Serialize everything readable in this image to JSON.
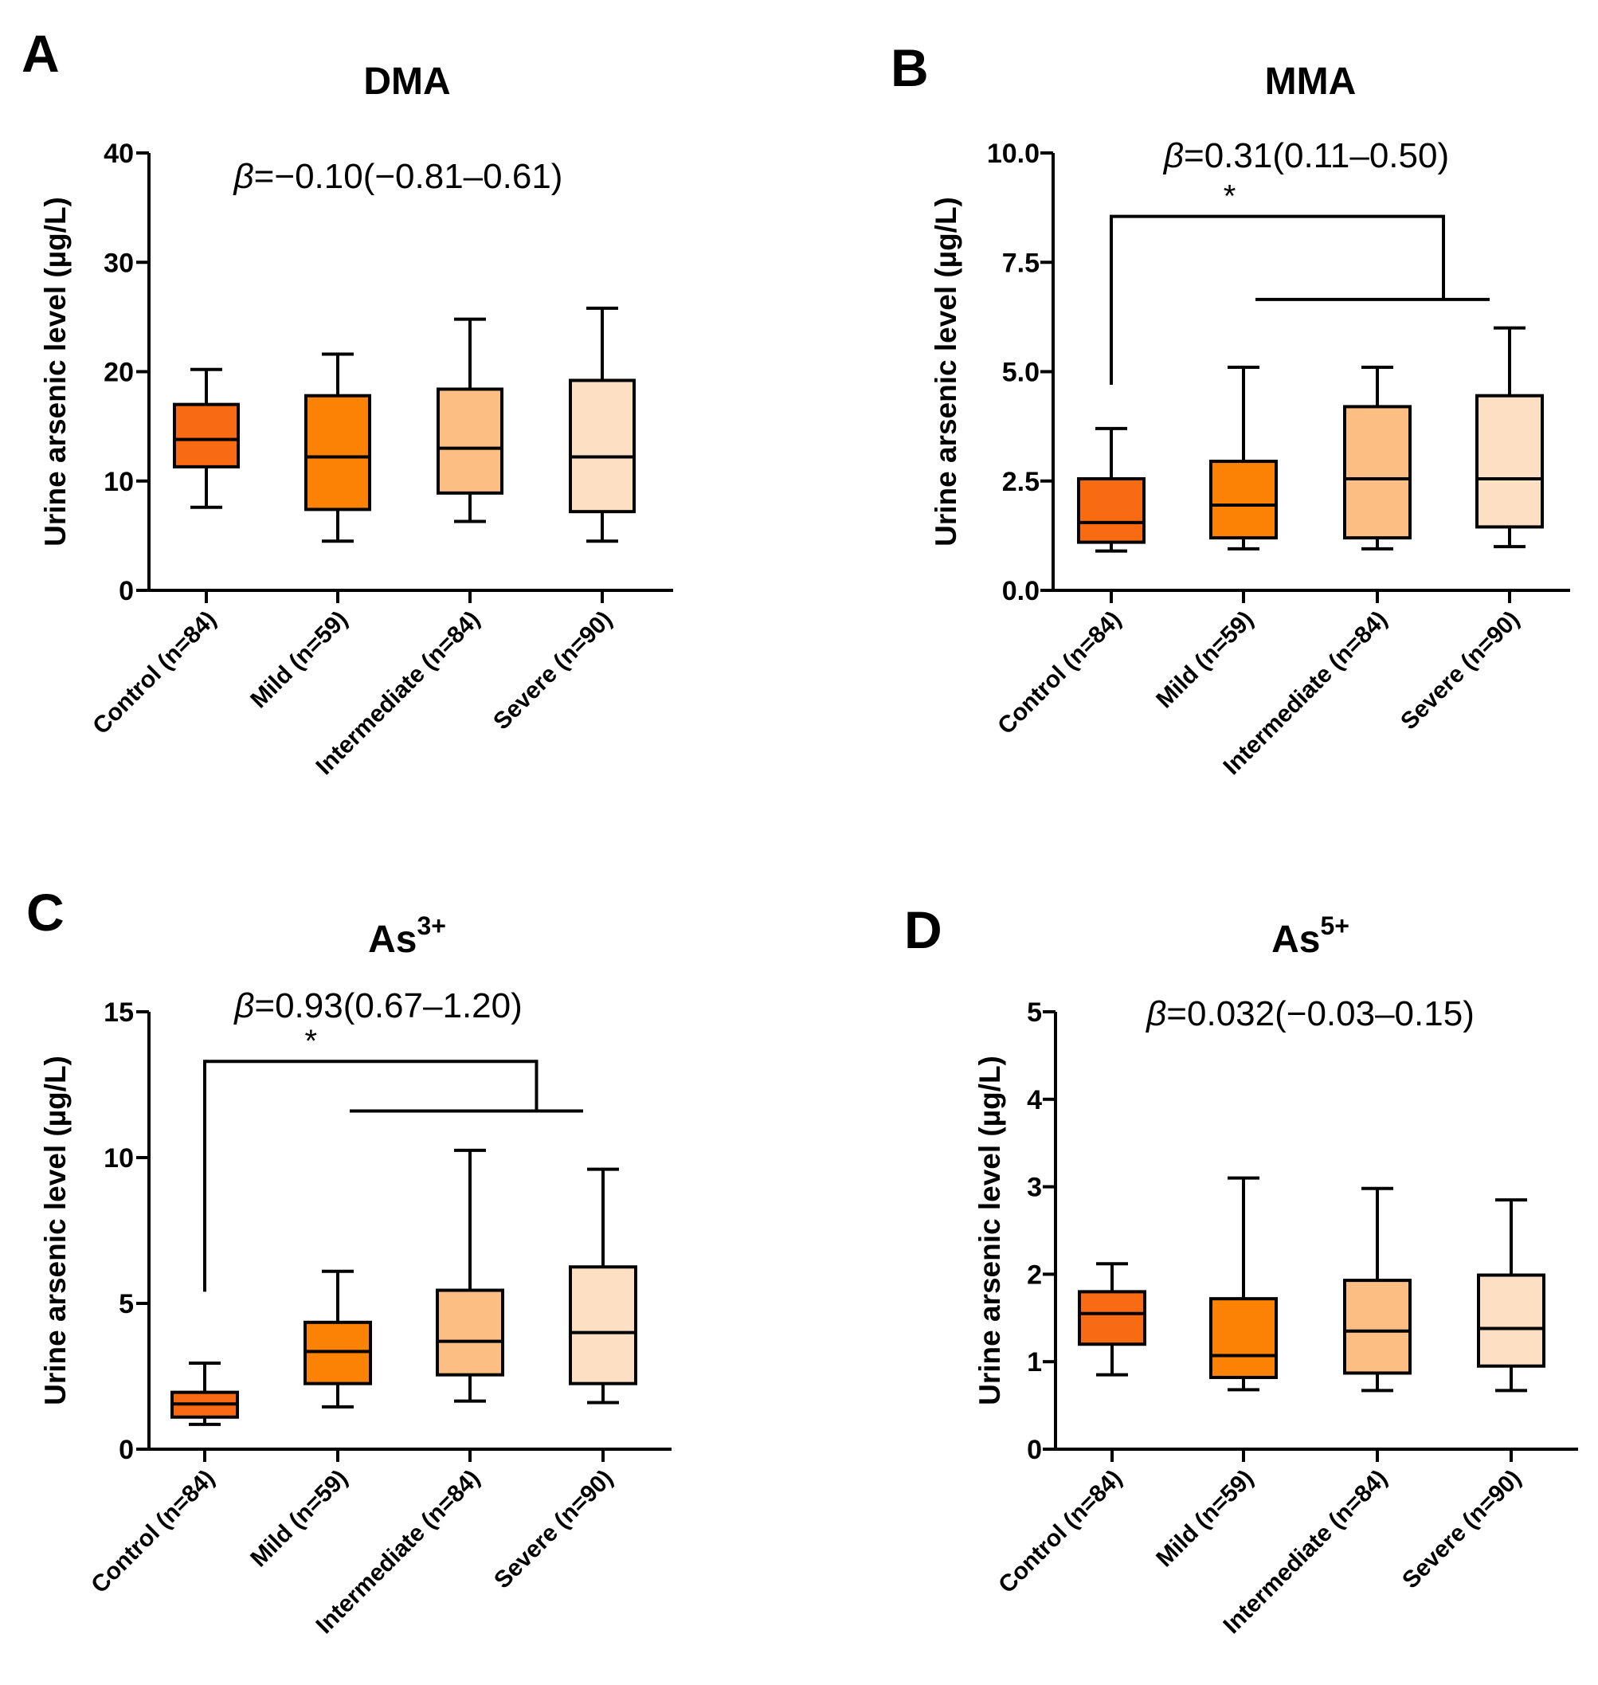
{
  "colors": {
    "group_fills": [
      "#f86b12",
      "#fb8205",
      "#fcbe83",
      "#fde0c4"
    ],
    "stroke": "#000000"
  },
  "chart_data": [
    {
      "type": "box",
      "panel": "A",
      "title": "DMA",
      "ylabel": "Urine arsenic level (µg/L)",
      "ylim": [
        0,
        40
      ],
      "yticks": [
        "0",
        "10",
        "20",
        "30",
        "40"
      ],
      "ytick_values": [
        0,
        10,
        20,
        30,
        40
      ],
      "categories": [
        "Control (n=84)",
        "Mild (n=59)",
        "Intermediate (n=84)",
        "Severe (n=90)"
      ],
      "boxes": [
        {
          "min": 7.6,
          "q1": 11.3,
          "median": 13.8,
          "q3": 17.0,
          "max": 20.2
        },
        {
          "min": 4.5,
          "q1": 7.4,
          "median": 12.2,
          "q3": 17.8,
          "max": 21.6
        },
        {
          "min": 6.3,
          "q1": 8.9,
          "median": 13.0,
          "q3": 18.4,
          "max": 24.8
        },
        {
          "min": 4.5,
          "q1": 7.2,
          "median": 12.2,
          "q3": 19.2,
          "max": 25.8
        }
      ],
      "annotation": {
        "beta": "β",
        "text": "=−0.10(−0.81–0.61)"
      },
      "significance": null
    },
    {
      "type": "box",
      "panel": "B",
      "title": "MMA",
      "ylabel": "Urine arsenic level (µg/L)",
      "ylim": [
        0,
        10
      ],
      "yticks": [
        "0.0",
        "2.5",
        "5.0",
        "7.5",
        "10.0"
      ],
      "ytick_values": [
        0,
        2.5,
        5,
        7.5,
        10
      ],
      "categories": [
        "Control (n=84)",
        "Mild (n=59)",
        "Intermediate (n=84)",
        "Severe (n=90)"
      ],
      "boxes": [
        {
          "min": 0.9,
          "q1": 1.1,
          "median": 1.55,
          "q3": 2.55,
          "max": 3.7
        },
        {
          "min": 0.95,
          "q1": 1.2,
          "median": 1.95,
          "q3": 2.95,
          "max": 5.1
        },
        {
          "min": 0.95,
          "q1": 1.2,
          "median": 2.55,
          "q3": 4.2,
          "max": 5.1
        },
        {
          "min": 1.0,
          "q1": 1.45,
          "median": 2.55,
          "q3": 4.45,
          "max": 6.0
        }
      ],
      "annotation": {
        "beta": "β",
        "text": "=0.31(0.11–0.50)"
      },
      "significance": {
        "label": "*",
        "left_y": 4.7,
        "top_y": 8.55,
        "right_y": 6.65
      }
    },
    {
      "type": "box",
      "panel": "C",
      "title": "As",
      "title_sup": "3+",
      "ylabel": "Urine arsenic level (µg/L)",
      "ylim": [
        0,
        15
      ],
      "yticks": [
        "0",
        "5",
        "10",
        "15"
      ],
      "ytick_values": [
        0,
        5,
        10,
        15
      ],
      "categories": [
        "Control (n=84)",
        "Mild (n=59)",
        "Intermediate (n=84)",
        "Severe (n=90)"
      ],
      "boxes": [
        {
          "min": 0.85,
          "q1": 1.1,
          "median": 1.55,
          "q3": 1.95,
          "max": 2.95
        },
        {
          "min": 1.45,
          "q1": 2.25,
          "median": 3.35,
          "q3": 4.35,
          "max": 6.1
        },
        {
          "min": 1.65,
          "q1": 2.55,
          "median": 3.7,
          "q3": 5.45,
          "max": 10.25
        },
        {
          "min": 1.6,
          "q1": 2.25,
          "median": 4.0,
          "q3": 6.25,
          "max": 9.6
        }
      ],
      "annotation": {
        "beta": "β",
        "text": "=0.93(0.67–1.20)"
      },
      "significance": {
        "label": "*",
        "left_y": 5.4,
        "top_y": 13.3,
        "right_y": 11.6
      }
    },
    {
      "type": "box",
      "panel": "D",
      "title": "As",
      "title_sup": "5+",
      "ylabel": "Urine arsenic level (µg/L)",
      "ylim": [
        0,
        5
      ],
      "yticks": [
        "0",
        "1",
        "2",
        "3",
        "4",
        "5"
      ],
      "ytick_values": [
        0,
        1,
        2,
        3,
        4,
        5
      ],
      "categories": [
        "Control (n=84)",
        "Mild (n=59)",
        "Intermediate (n=84)",
        "Severe (n=90)"
      ],
      "boxes": [
        {
          "min": 0.85,
          "q1": 1.2,
          "median": 1.55,
          "q3": 1.8,
          "max": 2.12
        },
        {
          "min": 0.68,
          "q1": 0.82,
          "median": 1.07,
          "q3": 1.72,
          "max": 3.1
        },
        {
          "min": 0.67,
          "q1": 0.87,
          "median": 1.35,
          "q3": 1.93,
          "max": 2.98
        },
        {
          "min": 0.67,
          "q1": 0.95,
          "median": 1.38,
          "q3": 1.99,
          "max": 2.85
        }
      ],
      "annotation": {
        "beta": "β",
        "text": "=0.032(−0.03–0.15)"
      },
      "significance": null
    }
  ]
}
